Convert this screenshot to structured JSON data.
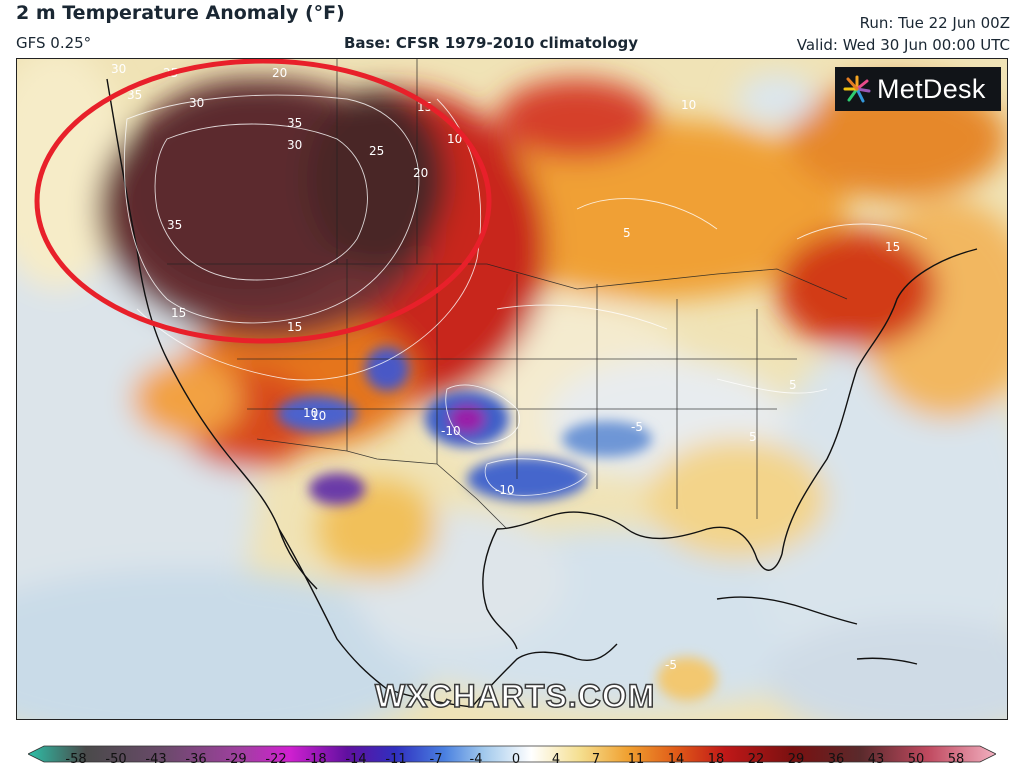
{
  "header": {
    "title": "2 m Temperature Anomaly (°F)",
    "model": "GFS 0.25°",
    "base": "Base: CFSR 1979-2010 climatology",
    "run": "Run: Tue 22 Jun 00Z",
    "valid": "Valid: Wed 30 Jun 00:00 UTC"
  },
  "brand": {
    "logo_text": "MetDesk",
    "watermark": "WXCHARTS.COM"
  },
  "colors": {
    "ocean_neutral": "#f3e6b8",
    "ocean_cool": "#dbe6ee",
    "warm_extreme": "#5a2a2c",
    "warm_hot": "#b5151b",
    "warm_orange": "#e07020",
    "cool_blue": "#3e5ec8",
    "cool_purple": "#9a1aa8",
    "highlight_circle": "#e8202a"
  },
  "map": {
    "region": "North America",
    "annotation": "red ellipse highlighting heat anomaly over Pacific Northwest / western Canada",
    "contour_labels": [
      {
        "text": "30"
      },
      {
        "text": "25"
      },
      {
        "text": "20"
      },
      {
        "text": "35"
      },
      {
        "text": "30"
      },
      {
        "text": "15"
      },
      {
        "text": "10"
      },
      {
        "text": "35"
      },
      {
        "text": "25"
      },
      {
        "text": "20"
      },
      {
        "text": "30"
      },
      {
        "text": "35"
      },
      {
        "text": "15"
      },
      {
        "text": "10"
      },
      {
        "text": "15"
      },
      {
        "text": "10"
      },
      {
        "text": "5"
      },
      {
        "text": "-5"
      },
      {
        "text": "-10"
      },
      {
        "text": "-10"
      },
      {
        "text": "10"
      },
      {
        "text": "15"
      },
      {
        "text": "5"
      },
      {
        "text": "5"
      },
      {
        "text": "-5"
      }
    ]
  },
  "legend": {
    "unit": "°F",
    "ticks": [
      "-58",
      "-50",
      "-43",
      "-36",
      "-29",
      "-22",
      "-18",
      "-14",
      "-11",
      "-7",
      "-4",
      "0",
      "4",
      "7",
      "11",
      "14",
      "18",
      "22",
      "29",
      "36",
      "43",
      "50",
      "58"
    ]
  }
}
